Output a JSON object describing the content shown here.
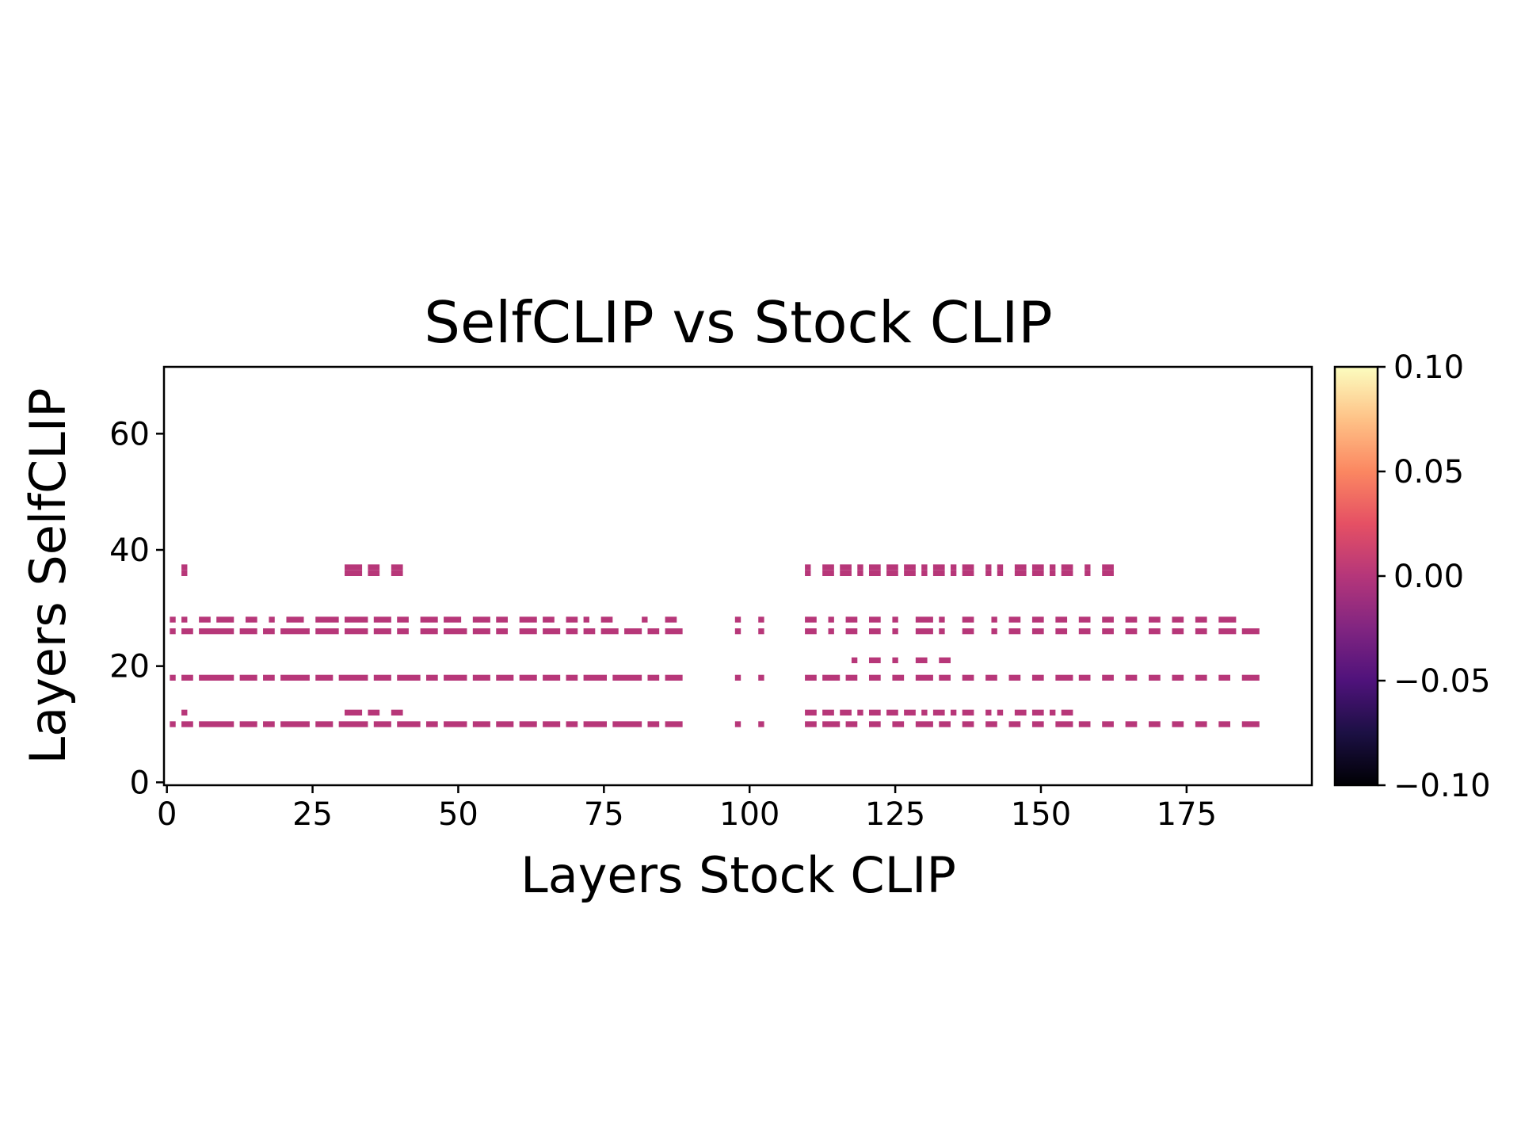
{
  "chart_data": {
    "type": "heatmap",
    "title": "SelfCLIP vs Stock CLIP",
    "xlabel": "Layers Stock CLIP",
    "ylabel": "Layers SelfCLIP",
    "xlim": [
      -0.5,
      196.5
    ],
    "ylim": [
      -0.5,
      71.5
    ],
    "xticks": [
      0,
      25,
      50,
      75,
      100,
      125,
      150,
      175
    ],
    "yticks": [
      0,
      20,
      40,
      60
    ],
    "colormap": "magma",
    "colorbar": {
      "range": [
        -0.1,
        0.1
      ],
      "ticks": [
        0.1,
        0.05,
        0.0,
        -0.05,
        -0.1
      ],
      "tick_labels": [
        "0.10",
        "0.05",
        "0.00",
        "−0.05",
        "−0.10"
      ]
    },
    "cell_value": 0.0,
    "cell_color": "#b73779",
    "grid": false,
    "nonzero_cells": [
      {
        "y": 37,
        "x_runs": [
          [
            3,
            3
          ],
          [
            31,
            33
          ],
          [
            35,
            36
          ],
          [
            39,
            40
          ],
          [
            110,
            110
          ],
          [
            113,
            114
          ],
          [
            116,
            117
          ],
          [
            119,
            119
          ],
          [
            121,
            122
          ],
          [
            124,
            125
          ],
          [
            127,
            128
          ],
          [
            130,
            130
          ],
          [
            132,
            133
          ],
          [
            135,
            135
          ],
          [
            137,
            138
          ],
          [
            141,
            141
          ],
          [
            143,
            143
          ],
          [
            146,
            147
          ],
          [
            149,
            150
          ],
          [
            152,
            152
          ],
          [
            154,
            155
          ],
          [
            158,
            158
          ],
          [
            161,
            162
          ]
        ]
      },
      {
        "y": 36,
        "x_runs": [
          [
            3,
            3
          ],
          [
            31,
            33
          ],
          [
            35,
            36
          ],
          [
            39,
            40
          ],
          [
            110,
            110
          ],
          [
            113,
            114
          ],
          [
            116,
            117
          ],
          [
            119,
            119
          ],
          [
            121,
            122
          ],
          [
            124,
            125
          ],
          [
            127,
            128
          ],
          [
            130,
            130
          ],
          [
            132,
            133
          ],
          [
            135,
            135
          ],
          [
            137,
            138
          ],
          [
            141,
            141
          ],
          [
            143,
            143
          ],
          [
            146,
            147
          ],
          [
            149,
            150
          ],
          [
            152,
            152
          ],
          [
            154,
            155
          ],
          [
            158,
            158
          ],
          [
            161,
            162
          ]
        ]
      },
      {
        "y": 28,
        "x_runs": [
          [
            1,
            1
          ],
          [
            3,
            3
          ],
          [
            6,
            7
          ],
          [
            9,
            11
          ],
          [
            14,
            15
          ],
          [
            18,
            18
          ],
          [
            21,
            23
          ],
          [
            26,
            29
          ],
          [
            31,
            34
          ],
          [
            36,
            38
          ],
          [
            40,
            41
          ],
          [
            44,
            46
          ],
          [
            48,
            50
          ],
          [
            53,
            55
          ],
          [
            57,
            58
          ],
          [
            61,
            63
          ],
          [
            65,
            66
          ],
          [
            69,
            70
          ],
          [
            72,
            72
          ],
          [
            75,
            76
          ],
          [
            82,
            82
          ],
          [
            86,
            87
          ],
          [
            98,
            98
          ],
          [
            102,
            102
          ],
          [
            110,
            111
          ],
          [
            114,
            114
          ],
          [
            117,
            118
          ],
          [
            121,
            122
          ],
          [
            125,
            125
          ],
          [
            129,
            131
          ],
          [
            133,
            133
          ],
          [
            137,
            138
          ],
          [
            142,
            142
          ],
          [
            145,
            146
          ],
          [
            149,
            150
          ],
          [
            153,
            154
          ],
          [
            157,
            158
          ],
          [
            161,
            162
          ],
          [
            165,
            166
          ],
          [
            169,
            170
          ],
          [
            173,
            174
          ],
          [
            177,
            178
          ],
          [
            181,
            183
          ]
        ]
      },
      {
        "y": 26,
        "x_runs": [
          [
            1,
            1
          ],
          [
            3,
            4
          ],
          [
            6,
            11
          ],
          [
            13,
            15
          ],
          [
            17,
            18
          ],
          [
            20,
            24
          ],
          [
            26,
            29
          ],
          [
            31,
            34
          ],
          [
            36,
            38
          ],
          [
            40,
            41
          ],
          [
            44,
            46
          ],
          [
            48,
            51
          ],
          [
            53,
            55
          ],
          [
            57,
            58
          ],
          [
            61,
            63
          ],
          [
            65,
            67
          ],
          [
            69,
            70
          ],
          [
            72,
            73
          ],
          [
            75,
            77
          ],
          [
            79,
            81
          ],
          [
            83,
            84
          ],
          [
            86,
            88
          ],
          [
            98,
            98
          ],
          [
            102,
            102
          ],
          [
            110,
            111
          ],
          [
            114,
            114
          ],
          [
            117,
            118
          ],
          [
            121,
            122
          ],
          [
            125,
            125
          ],
          [
            129,
            131
          ],
          [
            133,
            133
          ],
          [
            137,
            138
          ],
          [
            142,
            142
          ],
          [
            145,
            146
          ],
          [
            149,
            150
          ],
          [
            153,
            154
          ],
          [
            157,
            158
          ],
          [
            161,
            162
          ],
          [
            165,
            166
          ],
          [
            169,
            170
          ],
          [
            173,
            174
          ],
          [
            177,
            178
          ],
          [
            181,
            183
          ],
          [
            185,
            187
          ]
        ]
      },
      {
        "y": 21,
        "x_runs": [
          [
            118,
            118
          ],
          [
            121,
            122
          ],
          [
            125,
            125
          ],
          [
            129,
            130
          ],
          [
            133,
            134
          ]
        ]
      },
      {
        "y": 18,
        "x_runs": [
          [
            1,
            1
          ],
          [
            3,
            4
          ],
          [
            6,
            11
          ],
          [
            13,
            15
          ],
          [
            17,
            18
          ],
          [
            20,
            24
          ],
          [
            26,
            28
          ],
          [
            30,
            34
          ],
          [
            36,
            38
          ],
          [
            40,
            43
          ],
          [
            45,
            46
          ],
          [
            48,
            51
          ],
          [
            53,
            55
          ],
          [
            57,
            59
          ],
          [
            61,
            63
          ],
          [
            65,
            67
          ],
          [
            69,
            70
          ],
          [
            72,
            75
          ],
          [
            77,
            81
          ],
          [
            83,
            84
          ],
          [
            86,
            88
          ],
          [
            98,
            98
          ],
          [
            102,
            102
          ],
          [
            110,
            111
          ],
          [
            113,
            115
          ],
          [
            117,
            118
          ],
          [
            121,
            122
          ],
          [
            125,
            126
          ],
          [
            129,
            131
          ],
          [
            133,
            134
          ],
          [
            137,
            138
          ],
          [
            141,
            142
          ],
          [
            145,
            146
          ],
          [
            149,
            150
          ],
          [
            153,
            155
          ],
          [
            157,
            158
          ],
          [
            161,
            162
          ],
          [
            165,
            166
          ],
          [
            169,
            170
          ],
          [
            173,
            174
          ],
          [
            177,
            178
          ],
          [
            181,
            182
          ],
          [
            185,
            187
          ]
        ]
      },
      {
        "y": 12,
        "x_runs": [
          [
            3,
            3
          ],
          [
            31,
            33
          ],
          [
            35,
            36
          ],
          [
            39,
            40
          ],
          [
            110,
            111
          ],
          [
            113,
            114
          ],
          [
            116,
            117
          ],
          [
            119,
            119
          ],
          [
            121,
            122
          ],
          [
            124,
            125
          ],
          [
            127,
            128
          ],
          [
            130,
            130
          ],
          [
            132,
            133
          ],
          [
            135,
            135
          ],
          [
            137,
            138
          ],
          [
            141,
            141
          ],
          [
            143,
            143
          ],
          [
            146,
            147
          ],
          [
            149,
            150
          ],
          [
            152,
            152
          ],
          [
            154,
            155
          ]
        ]
      },
      {
        "y": 10,
        "x_runs": [
          [
            1,
            1
          ],
          [
            3,
            4
          ],
          [
            6,
            11
          ],
          [
            13,
            15
          ],
          [
            17,
            18
          ],
          [
            20,
            24
          ],
          [
            26,
            28
          ],
          [
            30,
            34
          ],
          [
            36,
            38
          ],
          [
            40,
            43
          ],
          [
            45,
            46
          ],
          [
            48,
            51
          ],
          [
            53,
            55
          ],
          [
            57,
            59
          ],
          [
            61,
            63
          ],
          [
            65,
            67
          ],
          [
            69,
            70
          ],
          [
            72,
            75
          ],
          [
            77,
            81
          ],
          [
            83,
            84
          ],
          [
            86,
            88
          ],
          [
            98,
            98
          ],
          [
            102,
            102
          ],
          [
            110,
            111
          ],
          [
            113,
            115
          ],
          [
            117,
            118
          ],
          [
            121,
            122
          ],
          [
            125,
            126
          ],
          [
            129,
            131
          ],
          [
            133,
            134
          ],
          [
            137,
            138
          ],
          [
            141,
            142
          ],
          [
            145,
            146
          ],
          [
            149,
            150
          ],
          [
            153,
            155
          ],
          [
            157,
            158
          ],
          [
            161,
            162
          ],
          [
            165,
            166
          ],
          [
            169,
            170
          ],
          [
            173,
            174
          ],
          [
            177,
            178
          ],
          [
            181,
            182
          ],
          [
            185,
            187
          ]
        ]
      }
    ]
  }
}
